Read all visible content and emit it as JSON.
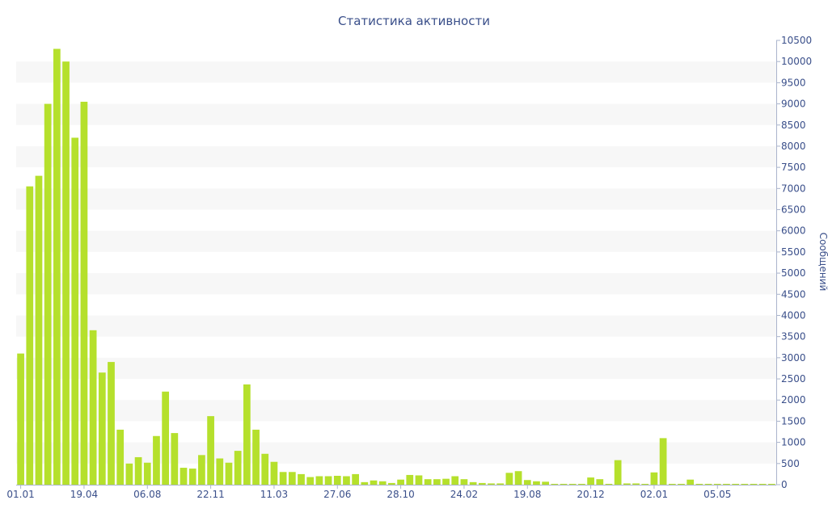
{
  "chart_data": {
    "type": "bar",
    "title": "Статистика активности",
    "ylabel": "Сообщений",
    "xlabel": "",
    "y_axis_side": "right",
    "ylim": [
      0,
      10500
    ],
    "y_ticks": [
      0,
      500,
      1000,
      1500,
      2000,
      2500,
      3000,
      3500,
      4000,
      4500,
      5000,
      5500,
      6000,
      6500,
      7000,
      7500,
      8000,
      8500,
      9000,
      9500,
      10000,
      10500
    ],
    "grid": "alternating horizontal bands",
    "bar_color": "#b5e02c",
    "band_color": "#f7f7f7",
    "text_color": "#3a4f8a",
    "x_tick_labels": [
      {
        "index": 0,
        "label": "01.01"
      },
      {
        "index": 7,
        "label": "19.04"
      },
      {
        "index": 14,
        "label": "06.08"
      },
      {
        "index": 21,
        "label": "22.11"
      },
      {
        "index": 28,
        "label": "11.03"
      },
      {
        "index": 35,
        "label": "27.06"
      },
      {
        "index": 42,
        "label": "28.10"
      },
      {
        "index": 49,
        "label": "24.02"
      },
      {
        "index": 56,
        "label": "19.08"
      },
      {
        "index": 63,
        "label": "20.12"
      },
      {
        "index": 70,
        "label": "02.01"
      },
      {
        "index": 77,
        "label": "05.05"
      }
    ],
    "values": [
      3100,
      7050,
      7300,
      9000,
      10300,
      10000,
      8200,
      9050,
      3650,
      2650,
      2900,
      1300,
      500,
      650,
      520,
      1150,
      2200,
      1220,
      400,
      380,
      700,
      1620,
      620,
      520,
      800,
      2370,
      1300,
      730,
      540,
      300,
      300,
      250,
      180,
      200,
      200,
      210,
      200,
      250,
      60,
      100,
      80,
      40,
      120,
      230,
      220,
      130,
      130,
      140,
      200,
      130,
      60,
      40,
      30,
      30,
      280,
      320,
      110,
      80,
      70,
      20,
      20,
      20,
      20,
      170,
      130,
      20,
      580,
      30,
      30,
      20,
      290,
      1100,
      20,
      20,
      120,
      20,
      20,
      20,
      20,
      20,
      20,
      20,
      20,
      20
    ]
  }
}
